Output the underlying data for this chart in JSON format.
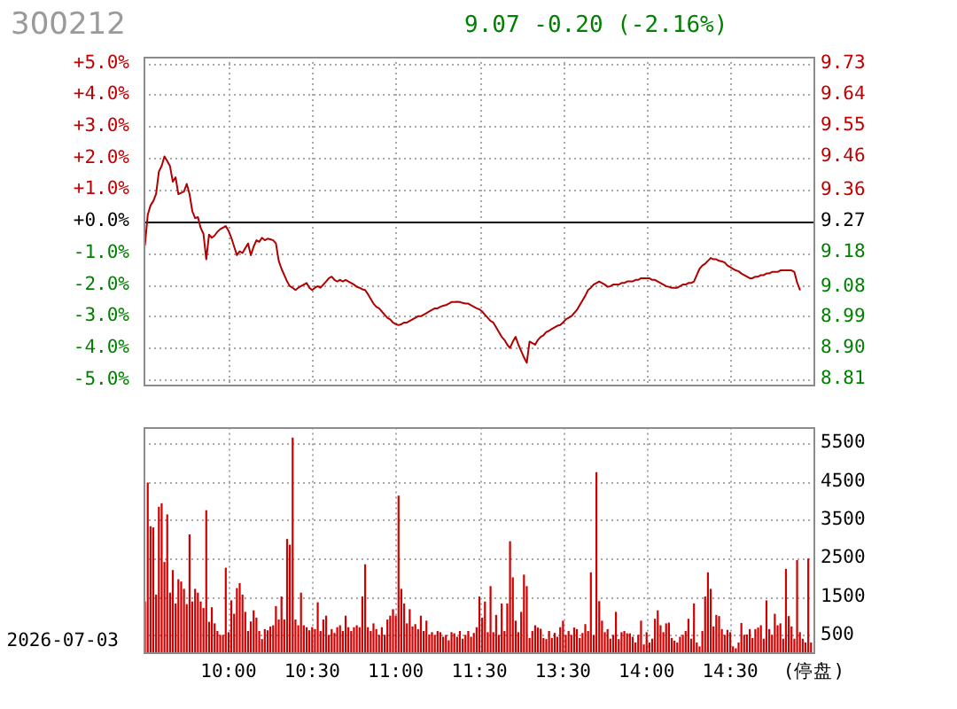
{
  "chart_data": [
    {
      "type": "line",
      "title": "300212",
      "subtitle": "9.07 -0.20 (-2.16%)",
      "categories": [
        null,
        null,
        null,
        null,
        null,
        null,
        null,
        null,
        null,
        null,
        null,
        null,
        null,
        null,
        null,
        null,
        null,
        null,
        null,
        null,
        null,
        null,
        null,
        null,
        null,
        null,
        null,
        null,
        null,
        null,
        null,
        null,
        null,
        null,
        null,
        null,
        null,
        null,
        null,
        null,
        null,
        null,
        null,
        null,
        null,
        null,
        null,
        null,
        null,
        null,
        null,
        null,
        null,
        null,
        null,
        null,
        null,
        null,
        null,
        null,
        null,
        null,
        null,
        null,
        null,
        null,
        null,
        null,
        null,
        null,
        null,
        null,
        null,
        null,
        null,
        null,
        null,
        null,
        null,
        null,
        null,
        null,
        null,
        null,
        null,
        null,
        null,
        null,
        null,
        null,
        null,
        null,
        null,
        null,
        null,
        null,
        null,
        null,
        null,
        null,
        null,
        null,
        null,
        null,
        null,
        null,
        null,
        null,
        null,
        null,
        null,
        null,
        null,
        null,
        null,
        null,
        null,
        null,
        null,
        null,
        null,
        null,
        null,
        null,
        null,
        null,
        null,
        null,
        null,
        null,
        null,
        null,
        null,
        null,
        null,
        null,
        null,
        null,
        null,
        null,
        null,
        null,
        null,
        null,
        null,
        null,
        null,
        null,
        null,
        null,
        null,
        null,
        null,
        null,
        null,
        null,
        null,
        null,
        null,
        null,
        null,
        null,
        null,
        null,
        null,
        null,
        null,
        null,
        null,
        null,
        null,
        null,
        null,
        null,
        null,
        null,
        null,
        null,
        null,
        null,
        null,
        null,
        null,
        null,
        null,
        null,
        null,
        null,
        null,
        null,
        null,
        null,
        null,
        null,
        null,
        null,
        null,
        null,
        null,
        null,
        null,
        null,
        null,
        null,
        null,
        null,
        null,
        null,
        null,
        null,
        null,
        null,
        null,
        null,
        null,
        null,
        null,
        null,
        null,
        null,
        null,
        null,
        null,
        null,
        null,
        null,
        null,
        null,
        null,
        null,
        null,
        null,
        null,
        null,
        null,
        null,
        null,
        null,
        null,
        null,
        null
      ],
      "series": [
        {
          "color": "#b00000",
          "values": [
            -0.75,
            0.2,
            0.5,
            0.64,
            0.86,
            1.57,
            1.75,
            2.05,
            1.9,
            1.74,
            1.25,
            1.39,
            0.86,
            0.9,
            0.94,
            1.18,
            0.86,
            0.32,
            0.1,
            0.13,
            -0.21,
            -0.4,
            -1.2,
            -0.42,
            -0.52,
            -0.45,
            -0.33,
            -0.25,
            -0.2,
            -0.15,
            -0.3,
            -0.52,
            -0.8,
            -1.07,
            -0.95,
            -1.0,
            -0.85,
            -0.7,
            -1.07,
            -0.8,
            -0.6,
            -0.65,
            -0.52,
            -0.6,
            -0.55,
            -0.57,
            -0.6,
            -0.7,
            -1.25,
            -1.5,
            -1.7,
            -1.9,
            -2.05,
            -2.1,
            -2.17,
            -2.1,
            -2.05,
            -2.0,
            -1.95,
            -2.1,
            -2.17,
            -2.1,
            -2.05,
            -2.1,
            -2.0,
            -1.9,
            -1.8,
            -1.75,
            -1.85,
            -1.9,
            -1.85,
            -1.9,
            -1.85,
            -1.9,
            -1.95,
            -2.0,
            -2.07,
            -2.1,
            -2.15,
            -2.17,
            -2.3,
            -2.45,
            -2.6,
            -2.7,
            -2.75,
            -2.85,
            -2.95,
            -3.05,
            -3.1,
            -3.2,
            -3.25,
            -3.28,
            -3.25,
            -3.2,
            -3.2,
            -3.15,
            -3.1,
            -3.05,
            -3.0,
            -3.0,
            -2.95,
            -2.9,
            -2.85,
            -2.8,
            -2.75,
            -2.75,
            -2.7,
            -2.67,
            -2.65,
            -2.6,
            -2.55,
            -2.55,
            -2.54,
            -2.55,
            -2.58,
            -2.6,
            -2.6,
            -2.65,
            -2.7,
            -2.75,
            -2.78,
            -2.85,
            -2.95,
            -3.05,
            -3.15,
            -3.2,
            -3.35,
            -3.5,
            -3.65,
            -3.75,
            -3.9,
            -4.0,
            -3.8,
            -3.65,
            -3.9,
            -4.1,
            -4.3,
            -4.47,
            -3.8,
            -3.85,
            -3.9,
            -3.75,
            -3.65,
            -3.6,
            -3.5,
            -3.46,
            -3.4,
            -3.35,
            -3.3,
            -3.28,
            -3.2,
            -3.1,
            -3.05,
            -3.0,
            -2.9,
            -2.8,
            -2.65,
            -2.5,
            -2.35,
            -2.17,
            -2.1,
            -2.0,
            -1.95,
            -1.9,
            -1.95,
            -2.0,
            -2.07,
            -2.05,
            -2.0,
            -2.0,
            -2.0,
            -1.95,
            -1.95,
            -1.9,
            -1.9,
            -1.9,
            -1.85,
            -1.85,
            -1.8,
            -1.8,
            -1.8,
            -1.8,
            -1.85,
            -1.85,
            -1.9,
            -1.95,
            -2.0,
            -2.05,
            -2.07,
            -2.1,
            -2.1,
            -2.1,
            -2.05,
            -2.0,
            -2.0,
            -1.95,
            -1.95,
            -1.9,
            -1.7,
            -1.5,
            -1.4,
            -1.34,
            -1.25,
            -1.16,
            -1.2,
            -1.2,
            -1.25,
            -1.27,
            -1.3,
            -1.4,
            -1.45,
            -1.5,
            -1.55,
            -1.58,
            -1.65,
            -1.7,
            -1.75,
            -1.8,
            -1.8,
            -1.75,
            -1.75,
            -1.7,
            -1.7,
            -1.65,
            -1.65,
            -1.6,
            -1.6,
            -1.6,
            -1.55,
            -1.55,
            -1.55,
            -1.55,
            -1.55,
            -1.6,
            -1.93,
            -2.16,
            null,
            null,
            null,
            null,
            null
          ]
        }
      ],
      "ylim": [
        -5.2,
        5.2
      ],
      "yticks": [
        {
          "value": 5,
          "label": "+5.0%"
        },
        {
          "value": 4,
          "label": "+4.0%"
        },
        {
          "value": 3,
          "label": "+3.0%"
        },
        {
          "value": 2,
          "label": "+2.0%"
        },
        {
          "value": 1,
          "label": "+1.0%"
        },
        {
          "value": 0,
          "label": "+0.0%"
        },
        {
          "value": -1,
          "label": "-1.0%"
        },
        {
          "value": -2,
          "label": "-2.0%"
        },
        {
          "value": -3,
          "label": "-3.0%"
        },
        {
          "value": -4,
          "label": "-4.0%"
        },
        {
          "value": -5,
          "label": "-5.0%"
        }
      ],
      "y2lim": [
        8.79,
        9.75
      ],
      "y2ticks": [
        9.73,
        9.64,
        9.55,
        9.46,
        9.36,
        9.27,
        9.18,
        9.08,
        8.99,
        {
          "value": 8.9,
          "label": "8.90"
        },
        8.81
      ],
      "ref_lines": [
        {
          "axis": "y",
          "value": 0,
          "color": "#000000"
        }
      ],
      "tick_labels": "y",
      "grid": true,
      "marker": "none"
    },
    {
      "type": "bar",
      "categories": [
        null,
        null,
        null,
        null,
        null,
        null,
        null,
        null,
        null,
        null,
        null,
        null,
        null,
        null,
        null,
        null,
        null,
        null,
        null,
        null,
        null,
        null,
        null,
        null,
        null,
        null,
        null,
        null,
        null,
        null,
        "10:00",
        null,
        null,
        null,
        null,
        null,
        null,
        null,
        null,
        null,
        null,
        null,
        null,
        null,
        null,
        null,
        null,
        null,
        null,
        null,
        null,
        null,
        null,
        null,
        null,
        null,
        null,
        null,
        null,
        null,
        "10:30",
        null,
        null,
        null,
        null,
        null,
        null,
        null,
        null,
        null,
        null,
        null,
        null,
        null,
        null,
        null,
        null,
        null,
        null,
        null,
        null,
        null,
        null,
        null,
        null,
        null,
        null,
        null,
        null,
        null,
        "11:00",
        null,
        null,
        null,
        null,
        null,
        null,
        null,
        null,
        null,
        null,
        null,
        null,
        null,
        null,
        null,
        null,
        null,
        null,
        null,
        null,
        null,
        null,
        null,
        null,
        null,
        null,
        null,
        null,
        null,
        "11:30",
        null,
        null,
        null,
        null,
        null,
        null,
        null,
        null,
        null,
        null,
        null,
        null,
        null,
        null,
        null,
        null,
        null,
        null,
        null,
        null,
        null,
        null,
        null,
        null,
        null,
        null,
        null,
        null,
        null,
        "13:30",
        null,
        null,
        null,
        null,
        null,
        null,
        null,
        null,
        null,
        null,
        null,
        null,
        null,
        null,
        null,
        null,
        null,
        null,
        null,
        null,
        null,
        null,
        null,
        null,
        null,
        null,
        null,
        null,
        null,
        "14:00",
        null,
        null,
        null,
        null,
        null,
        null,
        null,
        null,
        null,
        null,
        null,
        null,
        null,
        null,
        null,
        null,
        null,
        null,
        null,
        null,
        null,
        null,
        null,
        null,
        null,
        null,
        null,
        null,
        null,
        "14:30",
        null,
        null,
        null,
        null,
        null,
        null,
        null,
        null,
        null,
        null,
        null,
        null,
        null,
        null,
        null,
        null,
        null,
        null,
        null,
        null,
        null,
        null,
        null,
        null,
        null,
        null,
        null,
        null,
        null,
        "(停盘)"
      ],
      "series": [
        {
          "color": "#d00000",
          "values": [
            1370,
            4470,
            3330,
            3300,
            1550,
            3840,
            3930,
            2400,
            3640,
            1600,
            2190,
            1320,
            1950,
            1890,
            1700,
            1300,
            3120,
            1370,
            1700,
            1600,
            1370,
            1200,
            3750,
            840,
            1220,
            800,
            600,
            500,
            500,
            2250,
            570,
            1400,
            1050,
            1720,
            1850,
            1550,
            1100,
            600,
            850,
            1140,
            950,
            600,
            390,
            650,
            620,
            720,
            750,
            1250,
            900,
            1500,
            900,
            3000,
            2850,
            5640,
            900,
            750,
            1600,
            750,
            700,
            620,
            700,
            650,
            1350,
            600,
            900,
            1000,
            500,
            650,
            550,
            700,
            750,
            600,
            1000,
            700,
            600,
            700,
            750,
            700,
            1500,
            2340,
            700,
            600,
            800,
            650,
            500,
            700,
            500,
            900,
            1000,
            1170,
            1000,
            4130,
            1700,
            1320,
            800,
            1170,
            720,
            780,
            650,
            1000,
            600,
            870,
            510,
            570,
            500,
            600,
            570,
            450,
            500,
            360,
            570,
            540,
            450,
            600,
            400,
            500,
            600,
            450,
            550,
            700,
            1500,
            950,
            1370,
            570,
            1770,
            570,
            1020,
            500,
            1320,
            600,
            1320,
            2940,
            2000,
            870,
            570,
            1100,
            2070,
            1770,
            420,
            600,
            750,
            690,
            660,
            420,
            390,
            600,
            420,
            550,
            450,
            700,
            870,
            500,
            600,
            500,
            690,
            650,
            420,
            550,
            780,
            600,
            2130,
            500,
            4740,
            1380,
            870,
            570,
            650,
            400,
            500,
            1100,
            390,
            570,
            600,
            540,
            540,
            450,
            300,
            500,
            870,
            250,
            570,
            300,
            400,
            920,
            1140,
            750,
            570,
            800,
            820,
            420,
            350,
            300,
            450,
            500,
            600,
            920,
            400,
            1320,
            300,
            200,
            600,
            1500,
            2130,
            1700,
            720,
            1020,
            990,
            650,
            500,
            630,
            570,
            200,
            150,
            300,
            810,
            500,
            510,
            650,
            420,
            650,
            690,
            750,
            400,
            1400,
            650,
            500,
            1050,
            750,
            800,
            400,
            2220,
            990,
            720,
            400,
            2450,
            570,
            400,
            300,
            2490,
            300,
            null
          ]
        }
      ],
      "ylim": [
        0,
        5900
      ],
      "yticks": [
        500,
        1500,
        2500,
        3500,
        4500,
        5500
      ],
      "annotations": [
        "2026-07-03"
      ],
      "grid": true
    }
  ]
}
